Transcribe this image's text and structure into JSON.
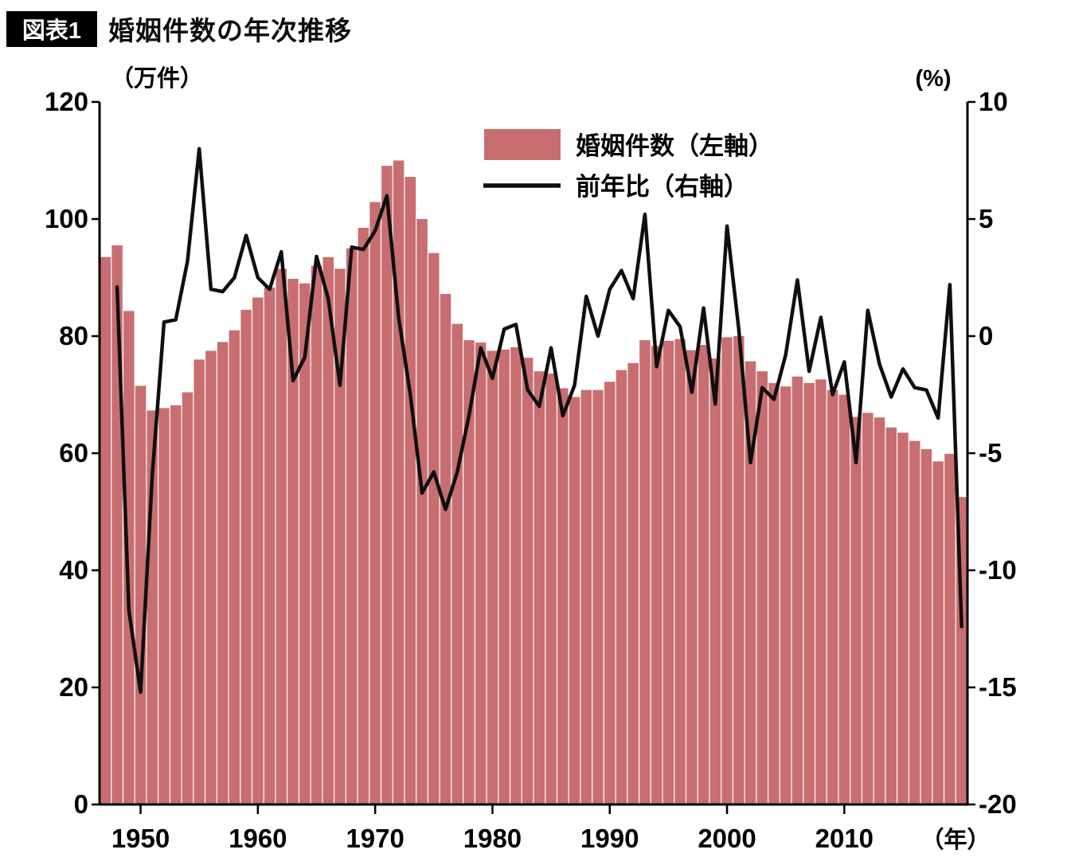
{
  "figure": {
    "badge": "図表1",
    "title": "婚姻件数の年次推移"
  },
  "axes": {
    "left_unit": "（万件）",
    "right_unit": "(%)",
    "x_unit": "（年）",
    "left_ticks": [
      0,
      20,
      40,
      60,
      80,
      100,
      120
    ],
    "right_ticks": [
      -20,
      -15,
      -10,
      -5,
      0,
      5,
      10
    ],
    "x_ticks": [
      1950,
      1960,
      1970,
      1980,
      1990,
      2000,
      2010
    ]
  },
  "legend": {
    "bars_label": "婚姻件数（左軸）",
    "line_label": "前年比（右軸）"
  },
  "colors": {
    "bar_fill": "#c86e71",
    "line": "#0f0f0f",
    "axis": "#000000"
  },
  "chart_data": {
    "type": "bar",
    "title": "婚姻件数の年次推移",
    "xlabel": "年",
    "left_ylabel": "万件",
    "right_ylabel": "%",
    "left_ylim": [
      0,
      120
    ],
    "right_ylim": [
      -20,
      10
    ],
    "grid": false,
    "legend_position": "top-center-inside",
    "x": [
      1947,
      1948,
      1949,
      1950,
      1951,
      1952,
      1953,
      1954,
      1955,
      1956,
      1957,
      1958,
      1959,
      1960,
      1961,
      1962,
      1963,
      1964,
      1965,
      1966,
      1967,
      1968,
      1969,
      1970,
      1971,
      1972,
      1973,
      1974,
      1975,
      1976,
      1977,
      1978,
      1979,
      1980,
      1981,
      1982,
      1983,
      1984,
      1985,
      1986,
      1987,
      1988,
      1989,
      1990,
      1991,
      1992,
      1993,
      1994,
      1995,
      1996,
      1997,
      1998,
      1999,
      2000,
      2001,
      2002,
      2003,
      2004,
      2005,
      2006,
      2007,
      2008,
      2009,
      2010,
      2011,
      2012,
      2013,
      2014,
      2015,
      2016,
      2017,
      2018,
      2019,
      2020
    ],
    "series": [
      {
        "name": "婚姻件数（左軸）",
        "type": "bar",
        "axis": "left",
        "unit": "万件",
        "values": [
          93.5,
          95.5,
          84.3,
          71.5,
          67.3,
          67.7,
          68.2,
          70.4,
          76.0,
          77.5,
          79.0,
          81.0,
          84.5,
          86.6,
          88.3,
          91.5,
          89.8,
          89.0,
          92.0,
          93.5,
          91.5,
          95.0,
          98.5,
          102.9,
          109.1,
          110.0,
          107.2,
          100.0,
          94.2,
          87.2,
          82.1,
          79.3,
          78.9,
          77.5,
          77.7,
          78.1,
          76.3,
          74.0,
          73.6,
          71.1,
          69.6,
          70.8,
          70.8,
          72.2,
          74.2,
          75.4,
          79.3,
          78.3,
          79.2,
          79.5,
          77.6,
          78.5,
          76.2,
          79.8,
          80.0,
          75.7,
          74.0,
          72.0,
          71.4,
          73.1,
          72.0,
          72.6,
          70.8,
          70.0,
          66.2,
          66.9,
          66.1,
          64.4,
          63.5,
          62.1,
          60.7,
          58.6,
          59.9,
          52.5
        ]
      },
      {
        "name": "前年比（右軸）",
        "type": "line",
        "axis": "right",
        "unit": "%",
        "values": [
          null,
          2.1,
          -11.7,
          -15.2,
          -5.9,
          0.6,
          0.7,
          3.2,
          8.0,
          2.0,
          1.9,
          2.5,
          4.3,
          2.5,
          2.0,
          3.6,
          -1.9,
          -0.9,
          3.4,
          1.6,
          -2.1,
          3.8,
          3.7,
          4.5,
          6.0,
          0.8,
          -2.5,
          -6.7,
          -5.8,
          -7.4,
          -5.8,
          -3.4,
          -0.5,
          -1.8,
          0.3,
          0.5,
          -2.3,
          -3.0,
          -0.5,
          -3.4,
          -2.1,
          1.7,
          0.0,
          2.0,
          2.8,
          1.6,
          5.2,
          -1.3,
          1.1,
          0.4,
          -2.4,
          1.2,
          -2.9,
          4.7,
          0.3,
          -5.4,
          -2.2,
          -2.7,
          -0.8,
          2.4,
          -1.5,
          0.8,
          -2.5,
          -1.1,
          -5.4,
          1.1,
          -1.2,
          -2.6,
          -1.4,
          -2.2,
          -2.3,
          -3.5,
          2.2,
          -12.4
        ]
      }
    ]
  }
}
